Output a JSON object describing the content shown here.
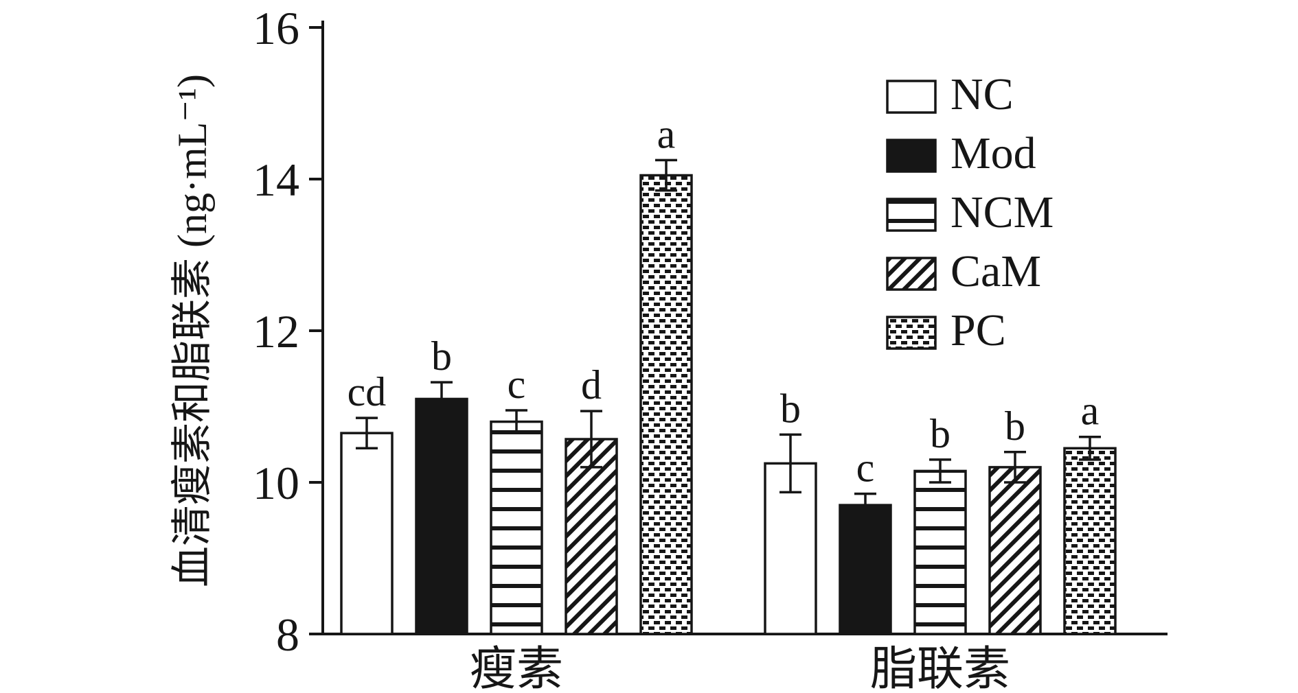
{
  "chart_data": {
    "type": "bar",
    "title": "",
    "xlabel": "",
    "ylabel": "血清瘦素和脂联素 (ng·mL⁻¹)",
    "ylim": [
      8,
      16
    ],
    "yticks": [
      8,
      10,
      12,
      14,
      16
    ],
    "grid": false,
    "legend_position": "inside-top-right",
    "categories": [
      "瘦素",
      "脂联素"
    ],
    "series": [
      {
        "name": "NC",
        "pattern": "plain",
        "values": [
          10.65,
          10.25
        ],
        "errors": [
          0.2,
          0.38
        ],
        "letters": [
          "cd",
          "b"
        ]
      },
      {
        "name": "Mod",
        "pattern": "solid",
        "values": [
          11.1,
          9.7
        ],
        "errors": [
          0.22,
          0.15
        ],
        "letters": [
          "b",
          "c"
        ]
      },
      {
        "name": "NCM",
        "pattern": "hlines",
        "values": [
          10.8,
          10.15
        ],
        "errors": [
          0.15,
          0.15
        ],
        "letters": [
          "c",
          "b"
        ]
      },
      {
        "name": "CaM",
        "pattern": "diag",
        "values": [
          10.57,
          10.2
        ],
        "errors": [
          0.37,
          0.2
        ],
        "letters": [
          "d",
          "b"
        ]
      },
      {
        "name": "PC",
        "pattern": "bricks",
        "values": [
          14.05,
          10.45
        ],
        "errors": [
          0.2,
          0.15
        ],
        "letters": [
          "a",
          "a"
        ]
      }
    ],
    "colors": {
      "ink": "#161616",
      "bar_fill": "#ffffff",
      "background": "#ffffff"
    }
  }
}
